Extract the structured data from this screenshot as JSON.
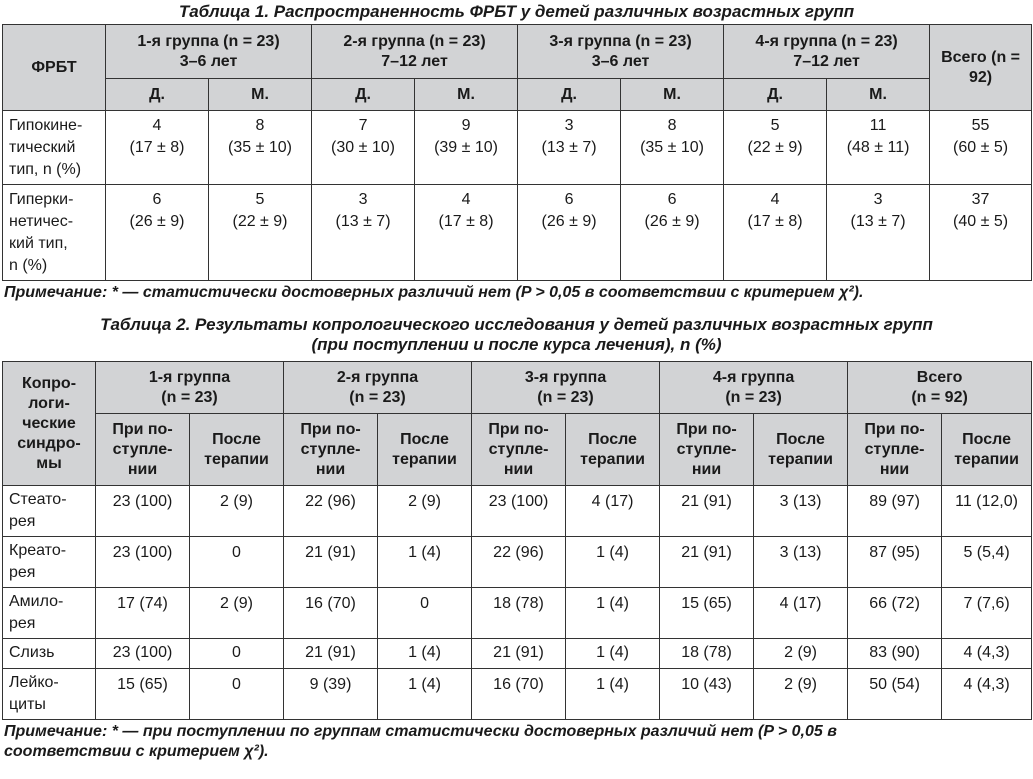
{
  "table1": {
    "caption": "Таблица 1. Распространенность ФРБТ у детей различных возрастных групп",
    "corner": "ФРБТ",
    "groups": [
      {
        "name": "1-я группа (n = 23)",
        "age": "3–6 лет"
      },
      {
        "name": "2-я группа (n = 23)",
        "age": "7–12 лет"
      },
      {
        "name": "3-я группа (n = 23)",
        "age": "3–6 лет"
      },
      {
        "name": "4-я группа (n = 23)",
        "age": "7–12 лет"
      }
    ],
    "total": "Всего (n = 92)",
    "sub": {
      "girls": "Д.",
      "boys": "М."
    },
    "rows": [
      {
        "label": "Гипокине-тический тип, n (%)",
        "cells": [
          [
            "4",
            "(17 ± 8)"
          ],
          [
            "8",
            "(35 ± 10)"
          ],
          [
            "7",
            "(30 ± 10)"
          ],
          [
            "9",
            "(39 ± 10)"
          ],
          [
            "3",
            "(13 ± 7)"
          ],
          [
            "8",
            "(35 ± 10)"
          ],
          [
            "5",
            "(22 ± 9)"
          ],
          [
            "11",
            "(48 ± 11)"
          ],
          [
            "55",
            "(60 ± 5)"
          ]
        ]
      },
      {
        "label": "Гиперки-нетичес-кий тип, n (%)",
        "cells": [
          [
            "6",
            "(26 ± 9)"
          ],
          [
            "5",
            "(22 ± 9)"
          ],
          [
            "3",
            "(13 ± 7)"
          ],
          [
            "4",
            "(17 ± 8)"
          ],
          [
            "6",
            "(26 ± 9)"
          ],
          [
            "6",
            "(26 ± 9)"
          ],
          [
            "4",
            "(17 ± 8)"
          ],
          [
            "3",
            "(13 ± 7)"
          ],
          [
            "37",
            "(40 ± 5)"
          ]
        ]
      }
    ],
    "note": "Примечание: * — статистически достоверных различий нет (P > 0,05 в соответствии с критерием χ²)."
  },
  "table2": {
    "caption_line1": "Таблица 2. Результаты копрологического исследования у детей различных возрастных групп",
    "caption_line2": "(при поступлении и после курса лечения), n (%)",
    "corner": "Копро-логи-ческие синдро-мы",
    "groups": [
      {
        "name": "1-я группа",
        "n": "(n = 23)"
      },
      {
        "name": "2-я группа",
        "n": "(n = 23)"
      },
      {
        "name": "3-я группа",
        "n": "(n = 23)"
      },
      {
        "name": "4-я группа",
        "n": "(n = 23)"
      },
      {
        "name": "Всего",
        "n": "(n = 92)"
      }
    ],
    "sub": {
      "admission": "При по-ступле-нии",
      "after": "После терапии"
    },
    "rows": [
      {
        "label": "Стеато-рея",
        "cells": [
          "23 (100)",
          "2 (9)",
          "22 (96)",
          "2 (9)",
          "23 (100)",
          "4 (17)",
          "21 (91)",
          "3 (13)",
          "89 (97)",
          "11 (12,0)"
        ]
      },
      {
        "label": "Креато-рея",
        "cells": [
          "23 (100)",
          "0",
          "21 (91)",
          "1 (4)",
          "22 (96)",
          "1 (4)",
          "21 (91)",
          "3 (13)",
          "87 (95)",
          "5 (5,4)"
        ]
      },
      {
        "label": "Амило-рея",
        "cells": [
          "17 (74)",
          "2 (9)",
          "16 (70)",
          "0",
          "18 (78)",
          "1 (4)",
          "15 (65)",
          "4 (17)",
          "66 (72)",
          "7 (7,6)"
        ]
      },
      {
        "label": "Слизь",
        "cells": [
          "23 (100)",
          "0",
          "21 (91)",
          "1 (4)",
          "21 (91)",
          "1 (4)",
          "18 (78)",
          "2 (9)",
          "83 (90)",
          "4 (4,3)"
        ]
      },
      {
        "label": "Лейко-циты",
        "cells": [
          "15 (65)",
          "0",
          "9 (39)",
          "1 (4)",
          "16 (70)",
          "1 (4)",
          "10 (43)",
          "2 (9)",
          "50 (54)",
          "4 (4,3)"
        ]
      }
    ],
    "note_line1": "Примечание: * — при поступлении по группам статистически достоверных различий нет (P > 0,05 в",
    "note_line2": "соответствии с критерием χ²)."
  }
}
